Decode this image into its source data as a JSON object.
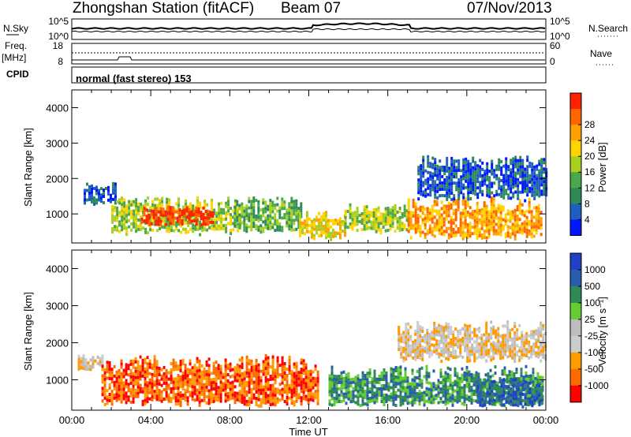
{
  "header": {
    "station": "Zhongshan Station (fitACF)",
    "beam": "Beam 07",
    "date": "07/Nov/2013"
  },
  "strip": {
    "nsky_label": "N.Sky",
    "nsky_top_tick": "10^5",
    "nsky_bottom_tick": "10^0",
    "nsearch_label": "N.Search",
    "nsearch_top_tick": "10^5",
    "nsearch_bottom_tick": "10^0",
    "freq_label": "Freq.",
    "freq_unit": "[MHz]",
    "freq_top_tick": "18",
    "freq_bottom_tick": "8",
    "nave_label": "Nave",
    "nave_top_tick": "60",
    "nave_bottom_tick": "0",
    "cpid_label": "CPID",
    "cpid_value": "normal (fast stereo) 153"
  },
  "colors": {
    "power": [
      "#0018ff",
      "#1f5fbf",
      "#2e8b57",
      "#4aa84a",
      "#a8d020",
      "#ffd400",
      "#ff9f00",
      "#ff6600",
      "#ff2200"
    ],
    "velocity": [
      "#ff0000",
      "#ff6a00",
      "#ff9a00",
      "#cccccc",
      "#bdbdbd",
      "#66cc33",
      "#2e8b57",
      "#2a5cb0",
      "#2040c8"
    ]
  },
  "chart_data": [
    {
      "type": "heatmap",
      "title": "Power",
      "ylabel": "Slant Range [km]",
      "xlabel": "Time UT",
      "ylim": [
        180,
        4500
      ],
      "yticks": [
        "1000",
        "2000",
        "3000",
        "4000"
      ],
      "xticks": [
        "00:00",
        "04:00",
        "08:00",
        "12:00",
        "16:00",
        "20:00",
        "00:00"
      ],
      "colorbar": {
        "label": "Power [dB]",
        "ticks": [
          "4",
          "8",
          "12",
          "16",
          "20",
          "24",
          "28"
        ]
      },
      "regions": [
        {
          "x": [
            0.6,
            2.2
          ],
          "y": [
            1300,
            1900
          ],
          "level": 1
        },
        {
          "x": [
            2.0,
            8.5
          ],
          "y": [
            450,
            1500
          ],
          "level": 4
        },
        {
          "x": [
            3.5,
            7.2
          ],
          "y": [
            700,
            1250
          ],
          "level": 8
        },
        {
          "x": [
            8.2,
            11.6
          ],
          "y": [
            500,
            1500
          ],
          "level": 3
        },
        {
          "x": [
            11.5,
            13.8
          ],
          "y": [
            300,
            1100
          ],
          "level": 5
        },
        {
          "x": [
            13.8,
            17.0
          ],
          "y": [
            500,
            1300
          ],
          "level": 4
        },
        {
          "x": [
            17.0,
            23.8
          ],
          "y": [
            300,
            1500
          ],
          "level": 6
        },
        {
          "x": [
            17.5,
            24.0
          ],
          "y": [
            1400,
            2700
          ],
          "level": 1
        }
      ]
    },
    {
      "type": "heatmap",
      "title": "Velocity",
      "ylabel": "Slant Range [km]",
      "xlabel": "Time UT",
      "ylim": [
        180,
        4500
      ],
      "yticks": [
        "1000",
        "2000",
        "3000",
        "4000"
      ],
      "xticks": [
        "00:00",
        "04:00",
        "08:00",
        "12:00",
        "16:00",
        "20:00",
        "00:00"
      ],
      "colorbar": {
        "label": "Velocity [m s⁻¹]",
        "ticks": [
          "1000",
          "500",
          "100",
          "25",
          "-25",
          "-100",
          "-500",
          "-1000"
        ]
      },
      "regions": [
        {
          "x": [
            0.3,
            1.5
          ],
          "y": [
            1300,
            1700
          ],
          "level": 3
        },
        {
          "x": [
            1.5,
            12.5
          ],
          "y": [
            300,
            1700
          ],
          "level": 1
        },
        {
          "x": [
            13.0,
            23.8
          ],
          "y": [
            300,
            1400
          ],
          "level": 6
        },
        {
          "x": [
            20.5,
            23.8
          ],
          "y": [
            300,
            1100
          ],
          "level": 7
        },
        {
          "x": [
            16.5,
            24.0
          ],
          "y": [
            1500,
            2600
          ],
          "level": 3
        }
      ]
    }
  ]
}
